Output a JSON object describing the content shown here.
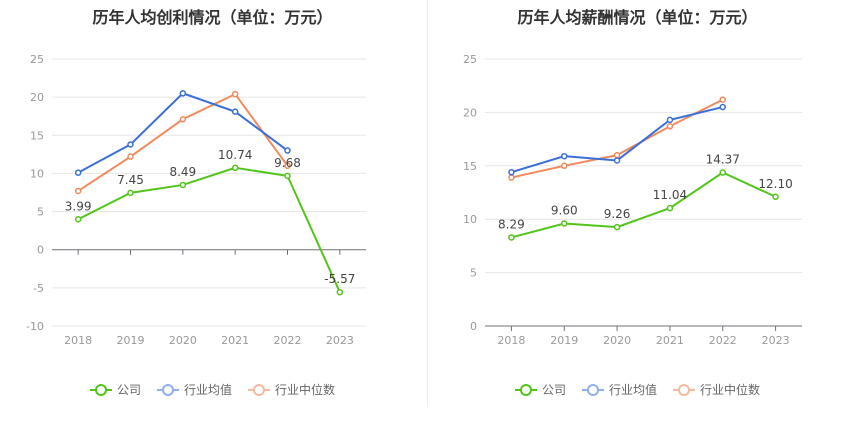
{
  "chart_data": [
    {
      "type": "line",
      "title": "历年人均创利情况（单位：万元）",
      "categories": [
        "2018",
        "2019",
        "2020",
        "2021",
        "2022",
        "2023"
      ],
      "ylim": [
        -10,
        25
      ],
      "yticks": [
        -10,
        -5,
        0,
        5,
        10,
        15,
        20,
        25
      ],
      "grid": true,
      "legend_position": "bottom",
      "series": [
        {
          "name": "公司",
          "color": "#52c41a",
          "values": [
            3.99,
            7.45,
            8.49,
            10.74,
            9.68,
            -5.57
          ],
          "labels": [
            "3.99",
            "7.45",
            "8.49",
            "10.74",
            "9.68",
            "-5.57"
          ]
        },
        {
          "name": "行业均值",
          "color": "#3a6fd8",
          "values": [
            10.1,
            13.8,
            20.5,
            18.1,
            13.0,
            null
          ]
        },
        {
          "name": "行业中位数",
          "color": "#f08a5d",
          "values": [
            7.7,
            12.2,
            17.1,
            20.4,
            11.0,
            null
          ]
        }
      ]
    },
    {
      "type": "line",
      "title": "历年人均薪酬情况（单位：万元）",
      "categories": [
        "2018",
        "2019",
        "2020",
        "2021",
        "2022",
        "2023"
      ],
      "ylim": [
        0,
        25
      ],
      "yticks": [
        0,
        5,
        10,
        15,
        20,
        25
      ],
      "grid": true,
      "legend_position": "bottom",
      "series": [
        {
          "name": "公司",
          "color": "#52c41a",
          "values": [
            8.29,
            9.6,
            9.26,
            11.04,
            14.37,
            12.1
          ],
          "labels": [
            "8.29",
            "9.60",
            "9.26",
            "11.04",
            "14.37",
            "12.10"
          ]
        },
        {
          "name": "行业均值",
          "color": "#3a6fd8",
          "values": [
            14.4,
            15.9,
            15.5,
            19.3,
            20.5,
            null
          ]
        },
        {
          "name": "行业中位数",
          "color": "#f08a5d",
          "values": [
            13.9,
            15.0,
            16.0,
            18.7,
            21.2,
            null
          ]
        }
      ]
    }
  ],
  "legend": [
    {
      "label": "公司",
      "color": "#52c41a"
    },
    {
      "label": "行业均值",
      "color": "#8fb0ea"
    },
    {
      "label": "行业中位数",
      "color": "#f5b8a0"
    }
  ]
}
